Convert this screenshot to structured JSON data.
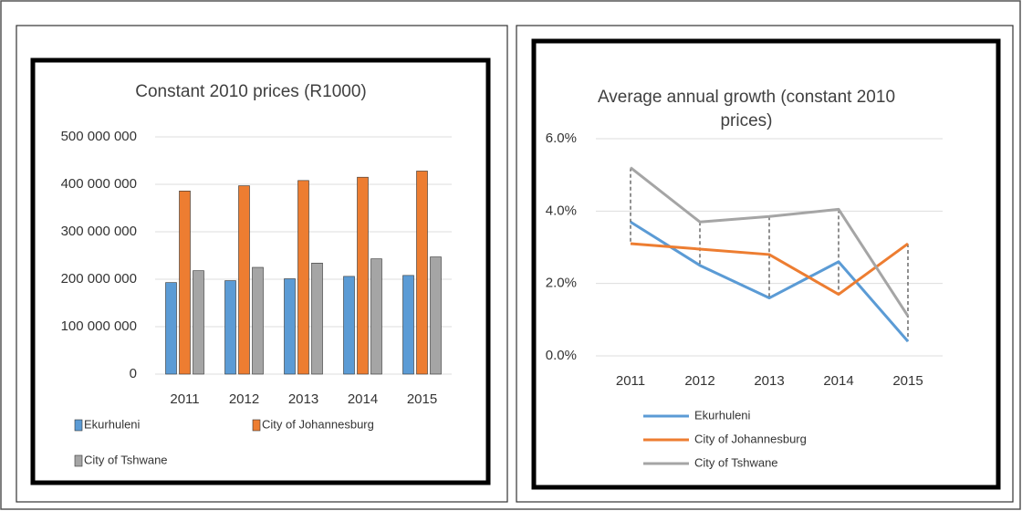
{
  "chart_data": [
    {
      "type": "bar",
      "title": "Constant 2010 prices (R1000)",
      "categories": [
        "2011",
        "2012",
        "2013",
        "2014",
        "2015"
      ],
      "series": [
        {
          "name": "Ekurhuleni",
          "color": "#5b9bd5",
          "values": [
            193000000,
            197000000,
            201000000,
            206000000,
            208000000
          ]
        },
        {
          "name": "City of Johannesburg",
          "color": "#ed7d31",
          "values": [
            386000000,
            397000000,
            408000000,
            415000000,
            428000000
          ]
        },
        {
          "name": "City of Tshwane",
          "color": "#a5a5a5",
          "values": [
            218000000,
            225000000,
            234000000,
            243000000,
            247000000
          ]
        }
      ],
      "ylim": [
        0,
        500000000
      ],
      "yticks": [
        0,
        {
          "value": 100000000,
          "label": "100 000 000"
        },
        {
          "value": 200000000,
          "label": "200 000 000"
        },
        {
          "value": 300000000,
          "label": "300 000 000"
        },
        {
          "value": 400000000,
          "label": "400 000 000"
        },
        {
          "value": 500000000,
          "label": "500 000 000"
        }
      ],
      "grid": true
    },
    {
      "type": "line",
      "title": "Average annual growth (constant 2010 prices)",
      "categories": [
        "2011",
        "2012",
        "2013",
        "2014",
        "2015"
      ],
      "series": [
        {
          "name": "Ekurhuleni",
          "color": "#5b9bd5",
          "values": [
            3.7,
            2.5,
            1.6,
            2.6,
            0.4
          ]
        },
        {
          "name": "City of Johannesburg",
          "color": "#ed7d31",
          "values": [
            3.1,
            2.95,
            2.8,
            1.7,
            3.1
          ]
        },
        {
          "name": "City of Tshwane",
          "color": "#a5a5a5",
          "values": [
            5.2,
            3.7,
            3.85,
            4.05,
            1.1
          ]
        }
      ],
      "ylim": [
        0,
        6
      ],
      "yticks": [
        {
          "value": 0,
          "label": "0.0%"
        },
        {
          "value": 2,
          "label": "2.0%"
        },
        {
          "value": 4,
          "label": "4.0%"
        },
        {
          "value": 6,
          "label": "6.0%"
        }
      ],
      "grid": true,
      "high_low_lines": true
    }
  ]
}
